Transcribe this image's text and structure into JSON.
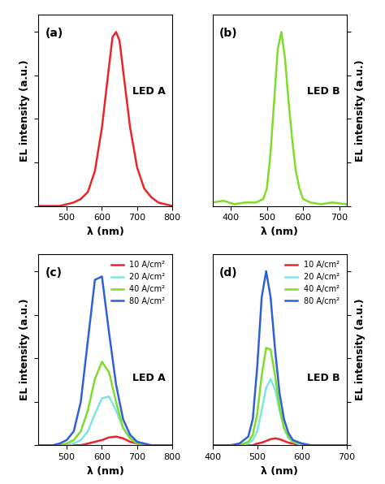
{
  "chart_data": [
    {
      "type": "line",
      "annotations": [
        "(a)",
        "LED A"
      ],
      "x_label": "λ (nm)",
      "y_label": "EL intensity (a.u.)",
      "xlim": [
        420,
        800
      ],
      "xticks": [
        500,
        600,
        700,
        800
      ],
      "ylim": [
        0,
        1.1
      ],
      "yticks": [
        0,
        0.25,
        0.5,
        0.75,
        1.0
      ],
      "tick_labels": "x",
      "x": [
        420,
        440,
        460,
        480,
        500,
        520,
        540,
        560,
        580,
        600,
        620,
        630,
        640,
        650,
        660,
        680,
        700,
        720,
        740,
        760,
        780,
        800
      ],
      "series": [
        {
          "name": "LED A",
          "color": "#e8262a",
          "values": [
            0.0,
            0.0,
            0.0,
            0.0,
            0.01,
            0.02,
            0.04,
            0.08,
            0.2,
            0.45,
            0.8,
            0.97,
            1.0,
            0.95,
            0.78,
            0.45,
            0.22,
            0.1,
            0.05,
            0.02,
            0.01,
            0.0
          ]
        }
      ]
    },
    {
      "type": "line",
      "annotations": [
        "(b)",
        "LED B"
      ],
      "x_label": "λ (nm)",
      "y_label": "EL intensity (a.u.)",
      "xlim": [
        350,
        720
      ],
      "xticks": [
        400,
        500,
        600,
        700
      ],
      "ylim": [
        0,
        1.1
      ],
      "yticks": [
        0,
        0.25,
        0.5,
        0.75,
        1.0
      ],
      "tick_labels": "x",
      "x": [
        350,
        380,
        410,
        440,
        470,
        490,
        500,
        510,
        520,
        530,
        540,
        550,
        560,
        570,
        580,
        590,
        600,
        620,
        650,
        680,
        720
      ],
      "series": [
        {
          "name": "LED B",
          "color": "#7fdc2a",
          "values": [
            0.02,
            0.03,
            0.01,
            0.02,
            0.02,
            0.04,
            0.1,
            0.3,
            0.6,
            0.9,
            1.0,
            0.85,
            0.6,
            0.38,
            0.2,
            0.1,
            0.04,
            0.02,
            0.01,
            0.02,
            0.01
          ]
        }
      ]
    },
    {
      "type": "line",
      "annotations": [
        "(c)",
        "LED A"
      ],
      "x_label": "λ (nm)",
      "y_label": "EL intensity (a.u.)",
      "xlim": [
        420,
        800
      ],
      "xticks": [
        500,
        600,
        700,
        800
      ],
      "ylim": [
        0,
        1.1
      ],
      "yticks": [
        0,
        0.25,
        0.5,
        0.75,
        1.0
      ],
      "tick_labels": "x",
      "legend": "upper right",
      "x": [
        420,
        440,
        460,
        480,
        500,
        520,
        540,
        560,
        580,
        600,
        620,
        640,
        660,
        680,
        700,
        720,
        740,
        760,
        780,
        800
      ],
      "series": [
        {
          "name": "10 A/cm²",
          "color": "#e8262a",
          "values": [
            0,
            0,
            0,
            0,
            0,
            0,
            0,
            0.01,
            0.02,
            0.03,
            0.045,
            0.05,
            0.04,
            0.02,
            0.01,
            0,
            0,
            0,
            0,
            0
          ]
        },
        {
          "name": "20 A/cm²",
          "color": "#7fe5e0",
          "values": [
            0,
            0,
            0,
            0,
            0,
            0.01,
            0.03,
            0.08,
            0.18,
            0.27,
            0.28,
            0.2,
            0.1,
            0.04,
            0.01,
            0,
            0,
            0,
            0,
            0
          ]
        },
        {
          "name": "40 A/cm²",
          "color": "#7fdc2a",
          "values": [
            0,
            0,
            0,
            0,
            0.01,
            0.03,
            0.08,
            0.2,
            0.38,
            0.48,
            0.42,
            0.25,
            0.1,
            0.04,
            0.01,
            0,
            0,
            0,
            0,
            0
          ]
        },
        {
          "name": "80 A/cm²",
          "color": "#3060d8",
          "values": [
            0,
            0,
            0,
            0.01,
            0.03,
            0.08,
            0.25,
            0.6,
            0.95,
            0.97,
            0.65,
            0.35,
            0.15,
            0.06,
            0.02,
            0.01,
            0,
            0,
            0,
            0
          ]
        }
      ]
    },
    {
      "type": "line",
      "annotations": [
        "(d)",
        "LED B"
      ],
      "x_label": "λ (nm)",
      "y_label": "EL intensity (a.u.)",
      "xlim": [
        400,
        700
      ],
      "xticks": [
        400,
        500,
        600,
        700
      ],
      "ylim": [
        0,
        1.1
      ],
      "yticks": [
        0,
        0.25,
        0.5,
        0.75,
        1.0
      ],
      "tick_labels": "x",
      "legend": "upper right",
      "x": [
        400,
        420,
        440,
        460,
        480,
        490,
        500,
        510,
        520,
        530,
        540,
        550,
        560,
        570,
        580,
        600,
        620,
        640,
        660,
        680,
        700
      ],
      "series": [
        {
          "name": "10 A/cm²",
          "color": "#e8262a",
          "values": [
            0,
            0,
            0,
            0,
            0,
            0,
            0.01,
            0.015,
            0.025,
            0.035,
            0.04,
            0.035,
            0.025,
            0.015,
            0.01,
            0,
            0,
            0,
            0,
            0,
            0
          ]
        },
        {
          "name": "20 A/cm²",
          "color": "#7fe5e0",
          "values": [
            0,
            0,
            0,
            0,
            0.01,
            0.03,
            0.08,
            0.2,
            0.33,
            0.38,
            0.32,
            0.2,
            0.1,
            0.04,
            0.02,
            0,
            0,
            0,
            0,
            0,
            0
          ]
        },
        {
          "name": "40 A/cm²",
          "color": "#7fdc2a",
          "values": [
            0,
            0,
            0,
            0,
            0.02,
            0.06,
            0.18,
            0.4,
            0.56,
            0.55,
            0.4,
            0.22,
            0.1,
            0.05,
            0.02,
            0.01,
            0,
            0,
            0,
            0,
            0
          ]
        },
        {
          "name": "80 A/cm²",
          "color": "#3060d8",
          "values": [
            0,
            0,
            0,
            0.01,
            0.05,
            0.15,
            0.45,
            0.85,
            1.0,
            0.85,
            0.55,
            0.3,
            0.15,
            0.07,
            0.03,
            0.01,
            0,
            0,
            0,
            0,
            0
          ]
        }
      ]
    }
  ]
}
